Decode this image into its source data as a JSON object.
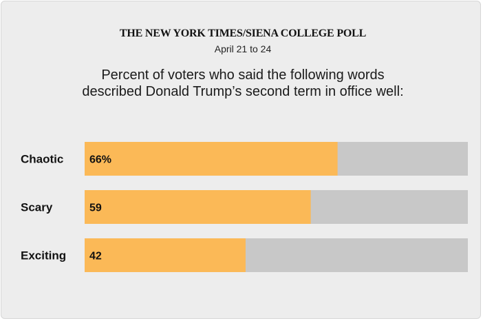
{
  "header": {
    "masthead": "THE NEW YORK TIMES/SIENA COLLEGE POLL",
    "dates": "April 21 to 24",
    "question_line1": "Percent of voters who said the following words",
    "question_line2": "described Donald Trump’s second term in office well:"
  },
  "colors": {
    "bar": "#fbb957",
    "track": "#c8c8c8",
    "background": "#ededed"
  },
  "chart_data": {
    "type": "bar",
    "orientation": "horizontal",
    "categories": [
      "Chaotic",
      "Scary",
      "Exciting"
    ],
    "values": [
      66,
      59,
      42
    ],
    "value_labels": [
      "66%",
      "59",
      "42"
    ],
    "xlim": [
      0,
      100
    ],
    "grid": false,
    "legend": "none"
  }
}
